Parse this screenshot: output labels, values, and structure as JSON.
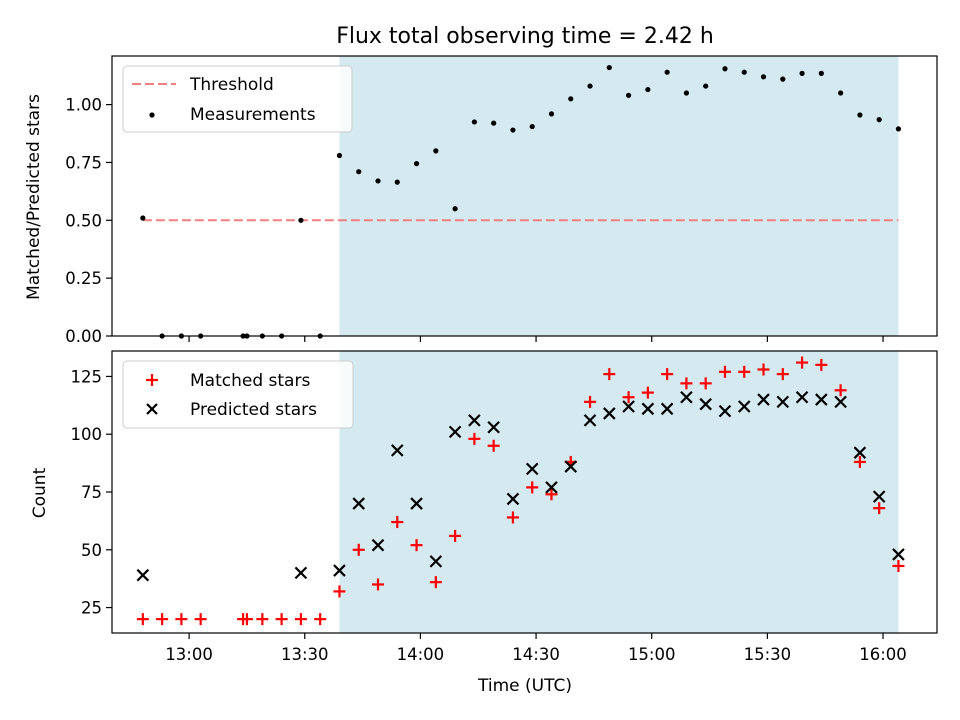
{
  "chart_data": [
    {
      "type": "scatter",
      "title": "Flux total observing time = 2.42 h",
      "ylabel": "Matched/Predicted stars",
      "xlabel": "",
      "xlim": [
        "12:40",
        "16:14"
      ],
      "ylim": [
        0,
        1.21
      ],
      "yticks": [
        "0.00",
        "0.25",
        "0.50",
        "0.75",
        "1.00"
      ],
      "legend_position": "top-left",
      "shaded_interval": [
        "13:39",
        "16:04"
      ],
      "shade_color": "#d4eaf0",
      "threshold": {
        "name": "Threshold",
        "value": 0.5,
        "x_range": [
          "12:48",
          "16:04"
        ],
        "color": "#f08080"
      },
      "series": [
        {
          "name": "Measurements",
          "color": "#000000",
          "marker": "dot",
          "x": [
            "12:48",
            "12:53",
            "12:58",
            "13:03",
            "13:14",
            "13:15",
            "13:19",
            "13:24",
            "13:29",
            "13:34",
            "13:39",
            "13:44",
            "13:49",
            "13:54",
            "13:59",
            "14:04",
            "14:09",
            "14:14",
            "14:19",
            "14:24",
            "14:29",
            "14:34",
            "14:39",
            "14:44",
            "14:49",
            "14:54",
            "14:59",
            "15:04",
            "15:09",
            "15:14",
            "15:19",
            "15:24",
            "15:29",
            "15:34",
            "15:39",
            "15:44",
            "15:49",
            "15:54",
            "15:59",
            "16:04"
          ],
          "values": [
            0.51,
            0.0,
            0.0,
            0.0,
            0.0,
            0.0,
            0.0,
            0.0,
            0.5,
            0.0,
            0.78,
            0.71,
            0.67,
            0.665,
            0.745,
            0.8,
            0.55,
            0.925,
            0.92,
            0.89,
            0.905,
            0.96,
            1.025,
            1.08,
            1.16,
            1.04,
            1.065,
            1.14,
            1.05,
            1.08,
            1.155,
            1.14,
            1.12,
            1.11,
            1.135,
            1.135,
            1.05,
            0.955,
            0.935,
            0.895
          ]
        }
      ]
    },
    {
      "type": "scatter",
      "title": "",
      "xlabel": "Time (UTC)",
      "ylabel": "Count",
      "xlim": [
        "12:40",
        "16:14"
      ],
      "ylim": [
        14,
        136
      ],
      "xticks": [
        "13:00",
        "13:30",
        "14:00",
        "14:30",
        "15:00",
        "15:30",
        "16:00"
      ],
      "yticks": [
        "25",
        "50",
        "75",
        "100",
        "125"
      ],
      "legend_position": "top-left",
      "shaded_interval": [
        "13:39",
        "16:04"
      ],
      "series": [
        {
          "name": "Matched stars",
          "color": "#ff0000",
          "marker": "plus",
          "x": [
            "12:48",
            "12:53",
            "12:58",
            "13:03",
            "13:14",
            "13:15",
            "13:19",
            "13:24",
            "13:29",
            "13:34",
            "13:39",
            "13:44",
            "13:49",
            "13:54",
            "13:59",
            "14:04",
            "14:09",
            "14:14",
            "14:19",
            "14:24",
            "14:29",
            "14:34",
            "14:39",
            "14:44",
            "14:49",
            "14:54",
            "14:59",
            "15:04",
            "15:09",
            "15:14",
            "15:19",
            "15:24",
            "15:29",
            "15:34",
            "15:39",
            "15:44",
            "15:49",
            "15:54",
            "15:59",
            "16:04"
          ],
          "values": [
            20,
            20,
            20,
            20,
            20,
            20,
            20,
            20,
            20,
            20,
            32,
            50,
            35,
            62,
            52,
            36,
            56,
            98,
            95,
            64,
            77,
            74,
            88,
            114,
            126,
            116,
            118,
            126,
            122,
            122,
            127,
            127,
            128,
            126,
            131,
            130,
            119,
            88,
            68,
            43
          ]
        },
        {
          "name": "Predicted stars",
          "color": "#000000",
          "marker": "x",
          "x": [
            "12:48",
            "13:29",
            "13:39",
            "13:44",
            "13:49",
            "13:54",
            "13:59",
            "14:04",
            "14:09",
            "14:14",
            "14:19",
            "14:24",
            "14:29",
            "14:34",
            "14:39",
            "14:44",
            "14:49",
            "14:54",
            "14:59",
            "15:04",
            "15:09",
            "15:14",
            "15:19",
            "15:24",
            "15:29",
            "15:34",
            "15:39",
            "15:44",
            "15:49",
            "15:54",
            "15:59",
            "16:04"
          ],
          "values": [
            39,
            40,
            41,
            70,
            52,
            93,
            70,
            45,
            101,
            106,
            103,
            72,
            85,
            77,
            86,
            106,
            109,
            112,
            111,
            111,
            116,
            113,
            110,
            112,
            115,
            114,
            116,
            115,
            114,
            92,
            73,
            48
          ]
        }
      ]
    }
  ]
}
